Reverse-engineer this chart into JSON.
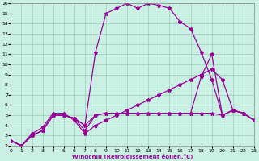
{
  "xlabel": "Windchill (Refroidissement éolien,°C)",
  "bg_color": "#caf0e4",
  "line_color": "#990099",
  "grid_color": "#99ccbb",
  "ylim": [
    2,
    16
  ],
  "xlim": [
    0,
    23
  ],
  "yticks": [
    2,
    3,
    4,
    5,
    6,
    7,
    8,
    9,
    10,
    11,
    12,
    13,
    14,
    15,
    16
  ],
  "xticks": [
    0,
    1,
    2,
    3,
    4,
    5,
    6,
    7,
    8,
    9,
    10,
    11,
    12,
    13,
    14,
    15,
    16,
    17,
    18,
    19,
    20,
    21,
    22,
    23
  ],
  "curve1_x": [
    0,
    1,
    2,
    3,
    4,
    5,
    6,
    7,
    8,
    9,
    10,
    11,
    12,
    13,
    14,
    15,
    16,
    17,
    18,
    19,
    20,
    21,
    22,
    23
  ],
  "curve1_y": [
    2.5,
    2.0,
    3.0,
    3.5,
    5.0,
    5.0,
    4.7,
    4.0,
    5.0,
    5.2,
    5.2,
    5.2,
    5.2,
    5.2,
    5.2,
    5.2,
    5.2,
    5.2,
    5.2,
    5.2,
    5.0,
    5.5,
    5.2,
    4.5
  ],
  "curve2_x": [
    0,
    1,
    2,
    3,
    4,
    5,
    6,
    7,
    8,
    9,
    10,
    11,
    12,
    13,
    14,
    15,
    16,
    17,
    18,
    19,
    20,
    21,
    22,
    23
  ],
  "curve2_y": [
    2.5,
    2.0,
    3.0,
    3.5,
    5.0,
    5.0,
    4.7,
    4.0,
    11.2,
    15.0,
    15.5,
    16.0,
    15.5,
    16.0,
    15.8,
    15.5,
    14.2,
    13.5,
    11.2,
    8.5,
    5.0,
    5.5,
    5.2,
    4.5
  ],
  "curve3_x": [
    0,
    1,
    2,
    3,
    4,
    5,
    6,
    7,
    8,
    9,
    10,
    11,
    12,
    13,
    14,
    15,
    16,
    17,
    18,
    19,
    20,
    21,
    22,
    23
  ],
  "curve3_y": [
    2.5,
    2.0,
    3.0,
    3.5,
    5.0,
    5.0,
    4.7,
    3.5,
    5.0,
    5.2,
    5.2,
    5.2,
    5.2,
    5.2,
    5.2,
    5.2,
    5.2,
    5.2,
    8.8,
    11.0,
    5.0,
    5.5,
    5.2,
    4.5
  ],
  "curve4_x": [
    0,
    1,
    2,
    3,
    4,
    5,
    6,
    7,
    8,
    9,
    10,
    11,
    12,
    13,
    14,
    15,
    16,
    17,
    18,
    19,
    20,
    21,
    22,
    23
  ],
  "curve4_y": [
    2.5,
    2.0,
    3.2,
    3.8,
    5.2,
    5.2,
    4.5,
    3.2,
    4.0,
    4.5,
    5.0,
    5.5,
    6.0,
    6.5,
    7.0,
    7.5,
    8.0,
    8.5,
    9.0,
    9.5,
    8.5,
    5.5,
    5.2,
    4.5
  ]
}
